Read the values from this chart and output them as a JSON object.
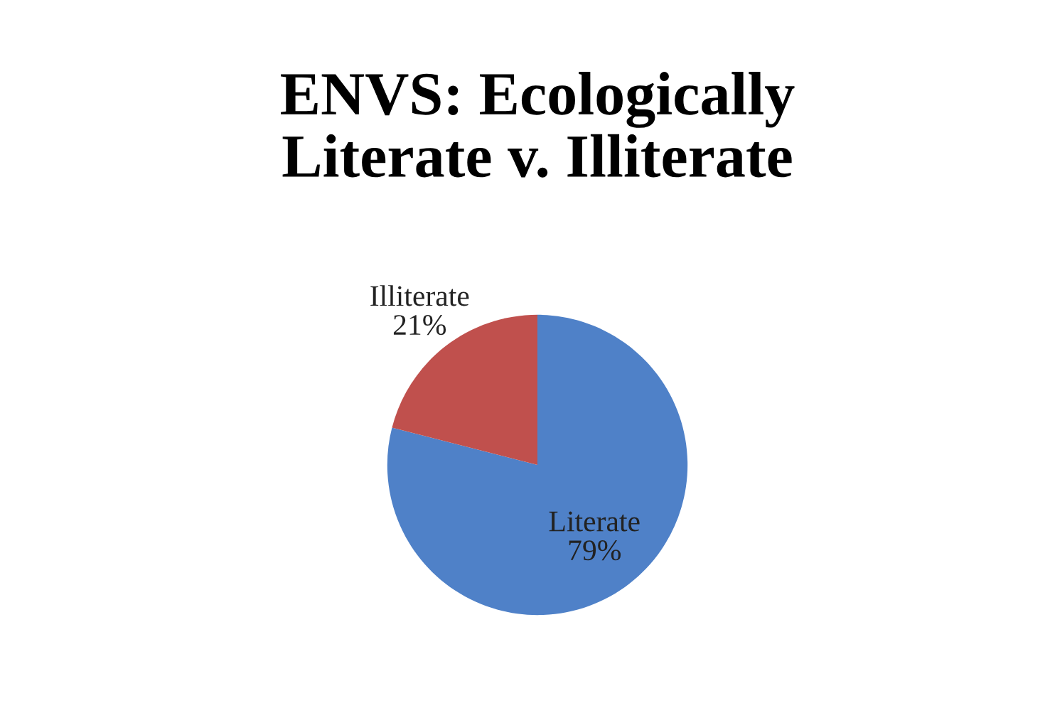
{
  "chart_data": {
    "type": "pie",
    "title": "ENVS: Ecologically\nLiterate v. Illiterate",
    "categories": [
      "Literate",
      "Illiterate"
    ],
    "values": [
      79,
      21
    ],
    "colors": [
      "#4f81c8",
      "#c0504d"
    ],
    "value_labels": [
      "79%",
      "21%"
    ]
  }
}
